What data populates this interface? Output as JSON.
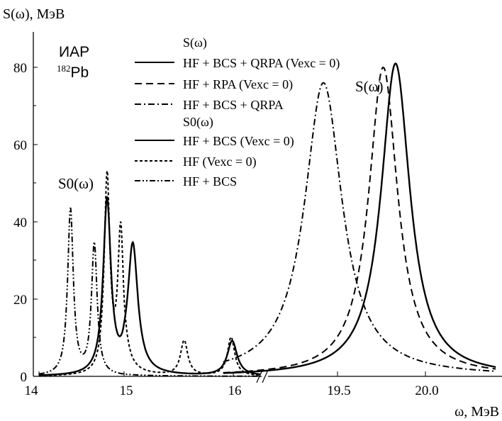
{
  "chart_data": {
    "type": "line",
    "ylabel": "S(ω), МэВ",
    "xlabel": "ω, МэВ",
    "ylim": [
      0,
      90
    ],
    "y_ticks": [
      "0",
      "20",
      "40",
      "60",
      "80"
    ],
    "x_ticks": [
      "14",
      "15",
      "16",
      "19.5",
      "20.0"
    ],
    "x_axis_break": "between 16 and 19.5",
    "annotations": {
      "mode": "ИАР",
      "nucleus_mass": "182",
      "nucleus_symbol": "Pb",
      "left_curve_label": "S0(ω)",
      "right_curve_label": "S(ω)"
    },
    "legend_placement": "top-center",
    "legend": {
      "group1_title": "S(ω)",
      "group1": [
        {
          "text": "HF + BCS + QRPA (Vexc = 0)",
          "style": "solid"
        },
        {
          "text": "HF + RPA (Vexc = 0)",
          "style": "dashed"
        },
        {
          "text": "HF + BCS + QRPA",
          "style": "dashdot"
        }
      ],
      "group2_title": "S0(ω)",
      "group2": [
        {
          "text": "HF + BCS (Vexc = 0)",
          "style": "solid"
        },
        {
          "text": "HF (Vexc = 0)",
          "style": "dotted"
        },
        {
          "text": "HF + BCS",
          "style": "dashdotdot"
        }
      ]
    },
    "series": [
      {
        "segment": "left",
        "style": "solid",
        "gamma": 0.055,
        "peaks": [
          [
            14.8,
            45
          ],
          [
            15.08,
            33
          ],
          [
            15.99,
            9
          ]
        ]
      },
      {
        "segment": "left",
        "style": "dotted",
        "gamma": 0.04,
        "peaks": [
          [
            14.8,
            51
          ],
          [
            14.96,
            37
          ],
          [
            15.55,
            9
          ],
          [
            15.98,
            10
          ]
        ]
      },
      {
        "segment": "left",
        "style": "dashdotdot",
        "gamma": 0.04,
        "peaks": [
          [
            14.37,
            43
          ],
          [
            14.65,
            34
          ]
        ]
      },
      {
        "segment": "right",
        "style": "solid",
        "gamma": 0.1,
        "peaks": [
          [
            19.83,
            81
          ]
        ]
      },
      {
        "segment": "right",
        "style": "dashed",
        "gamma": 0.1,
        "peaks": [
          [
            19.76,
            80
          ]
        ]
      },
      {
        "segment": "right",
        "style": "dashdot",
        "gamma": 0.13,
        "peaks": [
          [
            19.42,
            76
          ]
        ]
      }
    ]
  }
}
